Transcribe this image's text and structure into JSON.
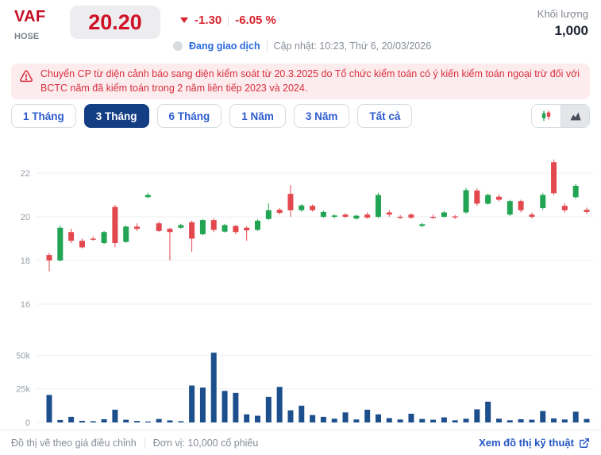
{
  "header": {
    "ticker": "VAF",
    "exchange": "HOSE",
    "price": "20.20",
    "change": "-1.30",
    "change_percent": "-6.05 %",
    "status": "Đang giao dịch",
    "updated": "Cập nhật: 10:23, Thứ 6, 20/03/2026",
    "volume_label": "Khối lượng",
    "volume_value": "1,000"
  },
  "warning": {
    "text": "Chuyển CP từ diện cảnh báo sang diện kiểm soát từ 20.3.2025 do Tổ chức kiểm toán có ý kiến kiểm toán ngoại trừ đối với BCTC năm đã kiểm toán trong 2 năm liên tiếp 2023 và 2024."
  },
  "tabs": [
    {
      "label": "1 Tháng",
      "active": false
    },
    {
      "label": "3 Tháng",
      "active": true
    },
    {
      "label": "6 Tháng",
      "active": false
    },
    {
      "label": "1 Năm",
      "active": false
    },
    {
      "label": "3 Năm",
      "active": false
    },
    {
      "label": "Tất cả",
      "active": false
    }
  ],
  "chart_toggle": {
    "options": [
      "candlestick",
      "area"
    ],
    "active": "area"
  },
  "footer": {
    "note1": "Đồ thị vẽ theo giá điều chỉnh",
    "note2": "Đơn vị: 10,000 cổ phiếu",
    "link": "Xem đồ thị kỹ thuật"
  },
  "icons": {
    "warning": "triangle-exclamation",
    "change_direction": "triangle-down",
    "status": "gray-dot",
    "toggle_left": "candlestick-chart",
    "toggle_right": "area-chart",
    "link": "external-link"
  },
  "colors": {
    "up": "#21a453",
    "down": "#e2484e",
    "volume": "#1d4f8d",
    "accent_red": "#d01126",
    "link_blue": "#2356c6",
    "active_tab": "#133e84",
    "warning_bg": "#fdecee",
    "warning_text": "#d62f3d"
  },
  "chart_data": {
    "type": "candlestick+volume",
    "title": "VAF 3-month price and volume chart",
    "price_axis": {
      "ticks": [
        22,
        20,
        18,
        16
      ],
      "range": [
        15.4,
        24.0
      ]
    },
    "volume_axis": {
      "ticks": [
        "0",
        "25k",
        "50k"
      ],
      "tick_values": [
        0,
        25000,
        50000
      ],
      "range": [
        0,
        71000
      ]
    },
    "candles": [
      [
        18.25,
        18.35,
        17.5,
        18.0
      ],
      [
        18.0,
        19.6,
        17.95,
        19.5
      ],
      [
        19.3,
        19.45,
        18.8,
        18.9
      ],
      [
        18.9,
        19.0,
        18.55,
        18.6
      ],
      [
        19.0,
        19.1,
        18.9,
        18.95
      ],
      [
        18.8,
        19.35,
        18.75,
        19.3
      ],
      [
        20.45,
        20.55,
        18.6,
        18.8
      ],
      [
        18.85,
        19.6,
        18.8,
        19.55
      ],
      [
        19.55,
        19.7,
        19.35,
        19.45
      ],
      [
        20.9,
        21.1,
        20.85,
        21.0
      ],
      [
        19.7,
        19.78,
        19.3,
        19.35
      ],
      [
        19.45,
        19.5,
        18.0,
        19.3
      ],
      [
        19.5,
        19.68,
        19.45,
        19.62
      ],
      [
        19.75,
        19.82,
        18.4,
        19.0
      ],
      [
        19.2,
        19.9,
        19.15,
        19.85
      ],
      [
        19.85,
        19.92,
        19.3,
        19.4
      ],
      [
        19.32,
        19.68,
        19.28,
        19.62
      ],
      [
        19.58,
        19.62,
        19.2,
        19.3
      ],
      [
        19.5,
        19.56,
        18.9,
        19.38
      ],
      [
        19.4,
        19.88,
        19.35,
        19.82
      ],
      [
        19.9,
        20.62,
        19.85,
        20.3
      ],
      [
        20.32,
        20.4,
        20.1,
        20.18
      ],
      [
        21.05,
        21.45,
        20.0,
        20.3
      ],
      [
        20.3,
        20.58,
        20.22,
        20.52
      ],
      [
        20.5,
        20.56,
        20.24,
        20.3
      ],
      [
        20.0,
        20.28,
        19.95,
        20.22
      ],
      [
        20.0,
        20.12,
        19.92,
        20.06
      ],
      [
        20.1,
        20.16,
        19.94,
        20.0
      ],
      [
        19.92,
        20.1,
        19.86,
        20.05
      ],
      [
        20.1,
        20.2,
        19.9,
        19.96
      ],
      [
        20.0,
        21.1,
        19.94,
        21.0
      ],
      [
        20.2,
        20.3,
        20.0,
        20.1
      ],
      [
        20.0,
        20.08,
        19.9,
        19.98
      ],
      [
        20.1,
        20.16,
        19.9,
        19.96
      ],
      [
        19.58,
        19.72,
        19.52,
        19.66
      ],
      [
        20.0,
        20.1,
        19.9,
        19.95
      ],
      [
        20.0,
        20.26,
        19.96,
        20.2
      ],
      [
        20.02,
        20.08,
        19.9,
        19.98
      ],
      [
        20.2,
        21.32,
        20.14,
        21.22
      ],
      [
        21.2,
        21.3,
        20.5,
        20.6
      ],
      [
        20.6,
        21.06,
        20.55,
        21.0
      ],
      [
        20.92,
        21.02,
        20.7,
        20.78
      ],
      [
        20.1,
        20.78,
        20.04,
        20.72
      ],
      [
        20.72,
        20.78,
        20.2,
        20.3
      ],
      [
        20.1,
        20.2,
        19.92,
        20.0
      ],
      [
        20.4,
        21.1,
        20.32,
        21.0
      ],
      [
        22.5,
        22.62,
        21.0,
        21.08
      ],
      [
        20.5,
        20.62,
        20.2,
        20.3
      ],
      [
        20.9,
        21.5,
        20.82,
        21.42
      ],
      [
        20.32,
        20.42,
        20.14,
        20.22
      ]
    ],
    "volumes": [
      20500,
      1800,
      4200,
      1200,
      900,
      2400,
      9500,
      2000,
      1100,
      700,
      2600,
      1500,
      900,
      27500,
      26000,
      52000,
      23500,
      22000,
      6000,
      5000,
      19000,
      26500,
      9000,
      12500,
      5500,
      4200,
      2800,
      7500,
      2200,
      9500,
      6000,
      3200,
      2200,
      6500,
      2600,
      2000,
      3800,
      1600,
      2800,
      9800,
      15500,
      2800,
      1600,
      2400,
      2000,
      8500,
      3000,
      2200,
      8000,
      2600
    ]
  }
}
